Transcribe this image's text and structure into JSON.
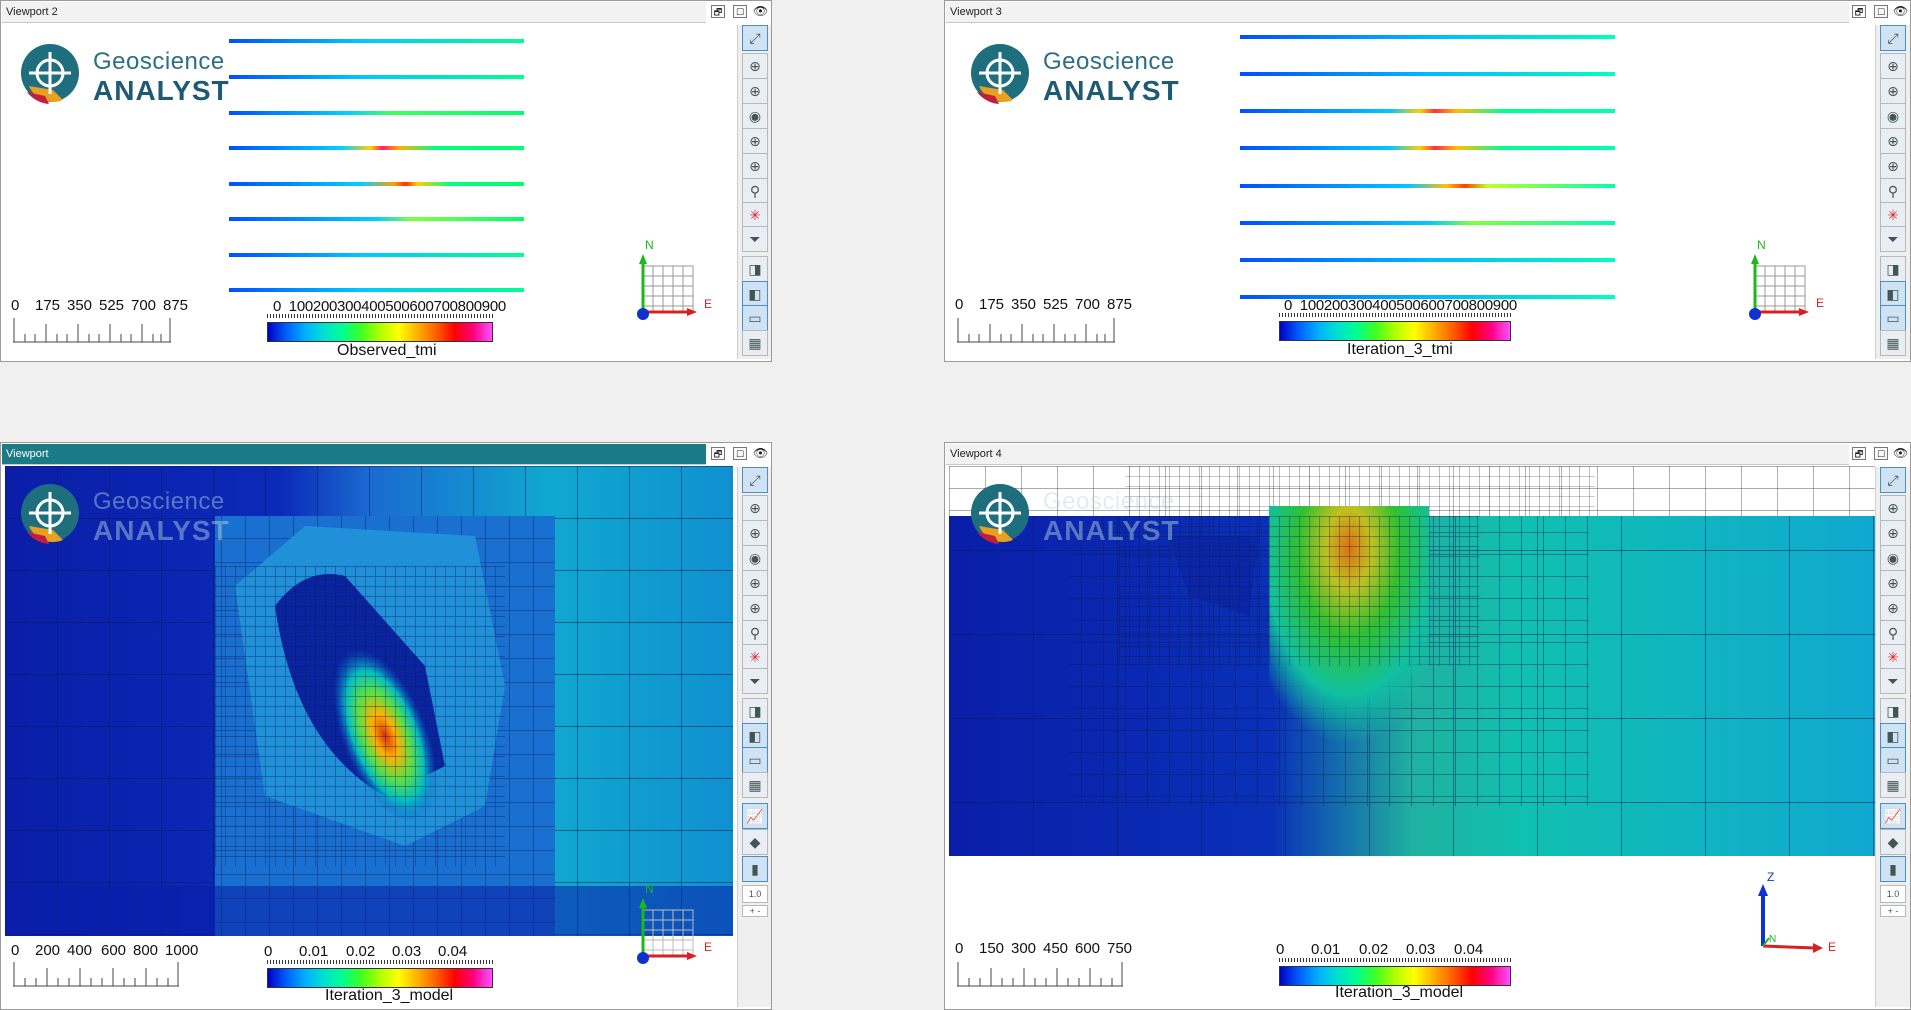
{
  "logo": {
    "line1": "Geoscience",
    "line2": "ANALYST"
  },
  "window_buttons": {
    "restore": "🗗",
    "maximize": "☐"
  },
  "tool_icons": [
    "zoom-extents-icon",
    "rotate-icon",
    "pan-icon",
    "orbit-icon",
    "center-icon",
    "look-icon",
    "link-icon",
    "axis-icon",
    "filter-icon",
    "box-view-icon",
    "cube-view-icon",
    "ruler-icon",
    "grid-icon",
    "chart-icon",
    "paint-icon",
    "colorbar-icon"
  ],
  "viewports": [
    {
      "title": "Viewport 2",
      "scale_labels": [
        "0",
        "175",
        "350",
        "525",
        "700",
        "875"
      ],
      "colorbar_labels": "0  100200300400500600700800900",
      "colorbar_title": "Observed_tmi",
      "axis": {
        "north": "N",
        "east": "E"
      }
    },
    {
      "title": "Viewport 3",
      "scale_labels": [
        "0",
        "175",
        "350",
        "525",
        "700",
        "875"
      ],
      "colorbar_labels": "0  100200300400500600700800900",
      "colorbar_title": "Iteration_3_tmi",
      "axis": {
        "north": "N",
        "east": "E"
      }
    },
    {
      "title": "Viewport",
      "scale_labels": [
        "0",
        "200",
        "400",
        "600",
        "800",
        "1000"
      ],
      "colorbar_labels": [
        "0",
        "0.01",
        "0.02",
        "0.03",
        "0.04"
      ],
      "colorbar_title": "Iteration_3_model",
      "axis": {
        "north": "N",
        "east": "E"
      },
      "zoom_value": "1.0"
    },
    {
      "title": "Viewport 4",
      "scale_labels": [
        "0",
        "150",
        "300",
        "450",
        "600",
        "750"
      ],
      "colorbar_labels": [
        "0",
        "0.01",
        "0.02",
        "0.03",
        "0.04"
      ],
      "colorbar_title": "Iteration_3_model",
      "axis": {
        "up": "Z",
        "east": "E",
        "north": "N"
      },
      "zoom_value": "1.0"
    }
  ],
  "colors": {
    "active_title": "#1a7a86",
    "brand": "#1e5a73"
  }
}
